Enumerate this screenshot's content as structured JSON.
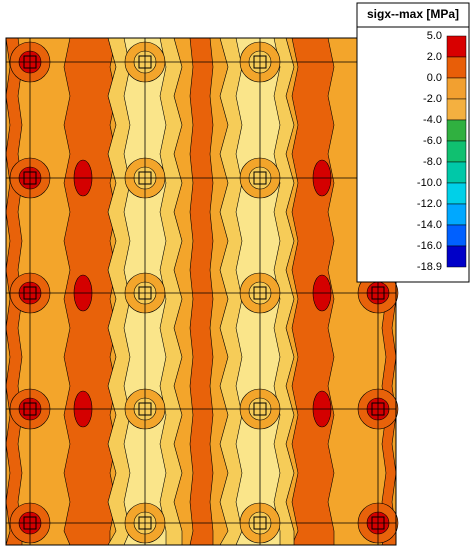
{
  "legend": {
    "title": "sigx--max [MPa]",
    "labels": [
      "5.0",
      "2.0",
      "0.0",
      "-2.0",
      "-4.0",
      "-6.0",
      "-8.0",
      "-10.0",
      "-12.0",
      "-14.0",
      "-16.0",
      "-18.9"
    ],
    "colors": [
      "#d80000",
      "#e85e08",
      "#f2a030",
      "#f4b040",
      "#30b040",
      "#10c070",
      "#00c8a8",
      "#00d0e8",
      "#00a8ff",
      "#0060ff",
      "#0000c8"
    ]
  }
}
